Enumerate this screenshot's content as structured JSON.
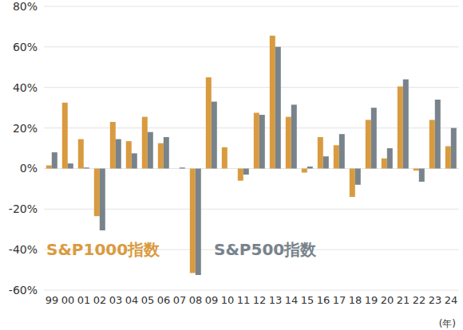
{
  "chart_data": {
    "type": "bar",
    "xlabel": "(年)",
    "categories": [
      "99",
      "00",
      "01",
      "02",
      "03",
      "04",
      "05",
      "06",
      "07",
      "08",
      "09",
      "10",
      "11",
      "12",
      "13",
      "14",
      "15",
      "16",
      "17",
      "18",
      "19",
      "20",
      "21",
      "22",
      "23",
      "24"
    ],
    "series": [
      {
        "name": "S&P1000指数",
        "color": "#D99B3F",
        "values": [
          1.5,
          32.5,
          14.5,
          -23.5,
          23,
          13.5,
          25.5,
          12.5,
          0,
          -51.5,
          45,
          10.5,
          -6,
          27.5,
          65.5,
          25.5,
          -2,
          15.5,
          11.5,
          -14,
          24,
          5,
          40.5,
          -1,
          24,
          11
        ]
      },
      {
        "name": "S&P500指数",
        "color": "#78838B",
        "values": [
          8,
          2.5,
          0.5,
          -30.5,
          14.5,
          7.5,
          18,
          15.5,
          0.5,
          -52.5,
          33,
          0,
          -3,
          26.5,
          60,
          31.5,
          1,
          6,
          17,
          -8,
          30,
          10,
          44,
          -6.5,
          34,
          20
        ]
      }
    ],
    "ylim": [
      -60,
      80
    ],
    "yticks": [
      {
        "value": -60,
        "label": "-60%"
      },
      {
        "value": -40,
        "label": "-40%"
      },
      {
        "value": -20,
        "label": "-20%"
      },
      {
        "value": 0,
        "label": "0%"
      },
      {
        "value": 20,
        "label": "20%"
      },
      {
        "value": 40,
        "label": "40%"
      },
      {
        "value": 60,
        "label": "60%"
      },
      {
        "value": 80,
        "label": "80%"
      }
    ],
    "grid": true,
    "legend": "lower left"
  }
}
